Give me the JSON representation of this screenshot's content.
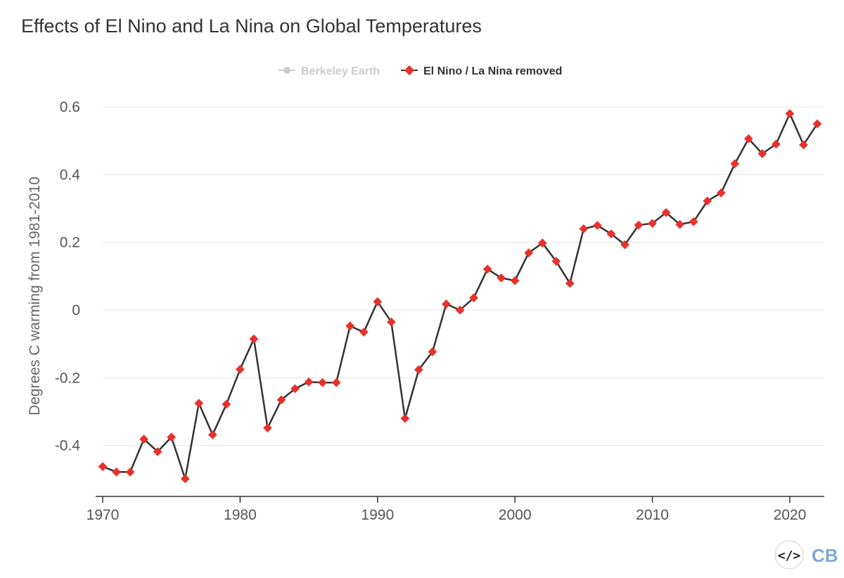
{
  "chart_data": {
    "type": "line",
    "title": "Effects of El Nino and La Nina on Global Temperatures",
    "ylabel": "Degrees C warming from 1981-2010",
    "xlabel": "",
    "xlim": [
      1969.5,
      2022.5
    ],
    "ylim": [
      -0.55,
      0.65
    ],
    "x_ticks": [
      1970,
      1980,
      1990,
      2000,
      2010,
      2020
    ],
    "y_ticks": [
      {
        "value": -0.4,
        "label": "-0.4"
      },
      {
        "value": -0.2,
        "label": "-0.2"
      },
      {
        "value": 0,
        "label": "0"
      },
      {
        "value": 0.2,
        "label": "0.2"
      },
      {
        "value": 0.4,
        "label": "0.4"
      },
      {
        "value": 0.6,
        "label": "0.6"
      }
    ],
    "grid": "horizontal",
    "legend_position": "top-center",
    "legend": [
      {
        "name": "Berkeley Earth",
        "color": "#cccccc",
        "visible": false
      },
      {
        "name": "El Nino / La Nina removed",
        "color": "#e8312a",
        "visible": true
      }
    ],
    "series": [
      {
        "name": "El Nino / La Nina removed",
        "line_color": "#333333",
        "marker_color": "#e8312a",
        "x": [
          1970,
          1971,
          1972,
          1973,
          1974,
          1975,
          1976,
          1977,
          1978,
          1979,
          1980,
          1981,
          1982,
          1983,
          1984,
          1985,
          1986,
          1987,
          1988,
          1989,
          1990,
          1991,
          1992,
          1993,
          1994,
          1995,
          1996,
          1997,
          1998,
          1999,
          2000,
          2001,
          2002,
          2003,
          2004,
          2005,
          2006,
          2007,
          2008,
          2009,
          2010,
          2011,
          2012,
          2013,
          2014,
          2015,
          2016,
          2017,
          2018,
          2019,
          2020,
          2021,
          2022
        ],
        "values": [
          -0.462,
          -0.478,
          -0.478,
          -0.381,
          -0.418,
          -0.375,
          -0.498,
          -0.275,
          -0.368,
          -0.278,
          -0.175,
          -0.085,
          -0.348,
          -0.265,
          -0.232,
          -0.212,
          -0.214,
          -0.214,
          -0.047,
          -0.065,
          0.025,
          -0.035,
          -0.32,
          -0.176,
          -0.123,
          0.018,
          0.0,
          0.036,
          0.121,
          0.095,
          0.087,
          0.169,
          0.198,
          0.144,
          0.079,
          0.24,
          0.25,
          0.225,
          0.193,
          0.251,
          0.256,
          0.288,
          0.253,
          0.261,
          0.322,
          0.346,
          0.432,
          0.506,
          0.462,
          0.49,
          0.58,
          0.488,
          0.55
        ]
      }
    ]
  },
  "logo": {
    "embed_symbol": "</>",
    "brand_text": "CB"
  }
}
